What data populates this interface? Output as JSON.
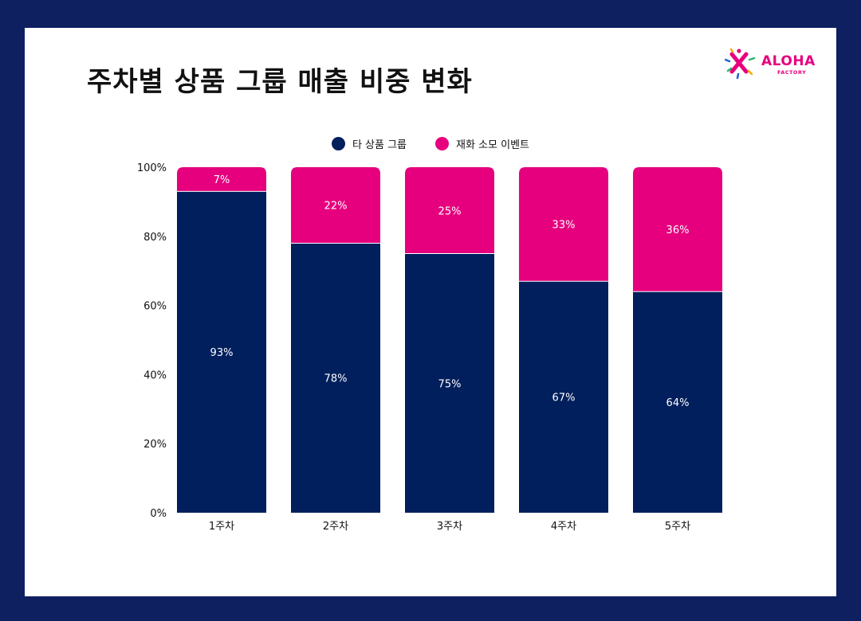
{
  "page": {
    "title": "주차별 상품 그룹 매출 비중 변화",
    "logo": {
      "word": "ALOHA",
      "sub": "FACTORY",
      "colors": [
        "#e6007e",
        "#1e63d6",
        "#f6a800",
        "#2fb36b"
      ]
    }
  },
  "colors": {
    "background": "#0f2060",
    "navy": "#001f5c",
    "magenta": "#e6007e"
  },
  "chart_data": {
    "type": "bar",
    "stacked": true,
    "categories": [
      "1주차",
      "2주차",
      "3주차",
      "4주차",
      "5주차"
    ],
    "series": [
      {
        "name": "타 상품 그룹",
        "color": "#001f5c",
        "values": [
          93,
          78,
          75,
          67,
          64
        ],
        "labels": [
          "93%",
          "78%",
          "75%",
          "67%",
          "64%"
        ]
      },
      {
        "name": "재화 소모 이벤트",
        "color": "#e6007e",
        "values": [
          7,
          22,
          25,
          33,
          36
        ],
        "labels": [
          "7%",
          "22%",
          "25%",
          "33%",
          "36%"
        ]
      }
    ],
    "yticks": [
      0,
      20,
      40,
      60,
      80,
      100
    ],
    "ytick_labels": [
      "0%",
      "20%",
      "40%",
      "60%",
      "80%",
      "100%"
    ],
    "ylim": [
      0,
      100
    ],
    "grid": false,
    "legend": "top-center"
  }
}
